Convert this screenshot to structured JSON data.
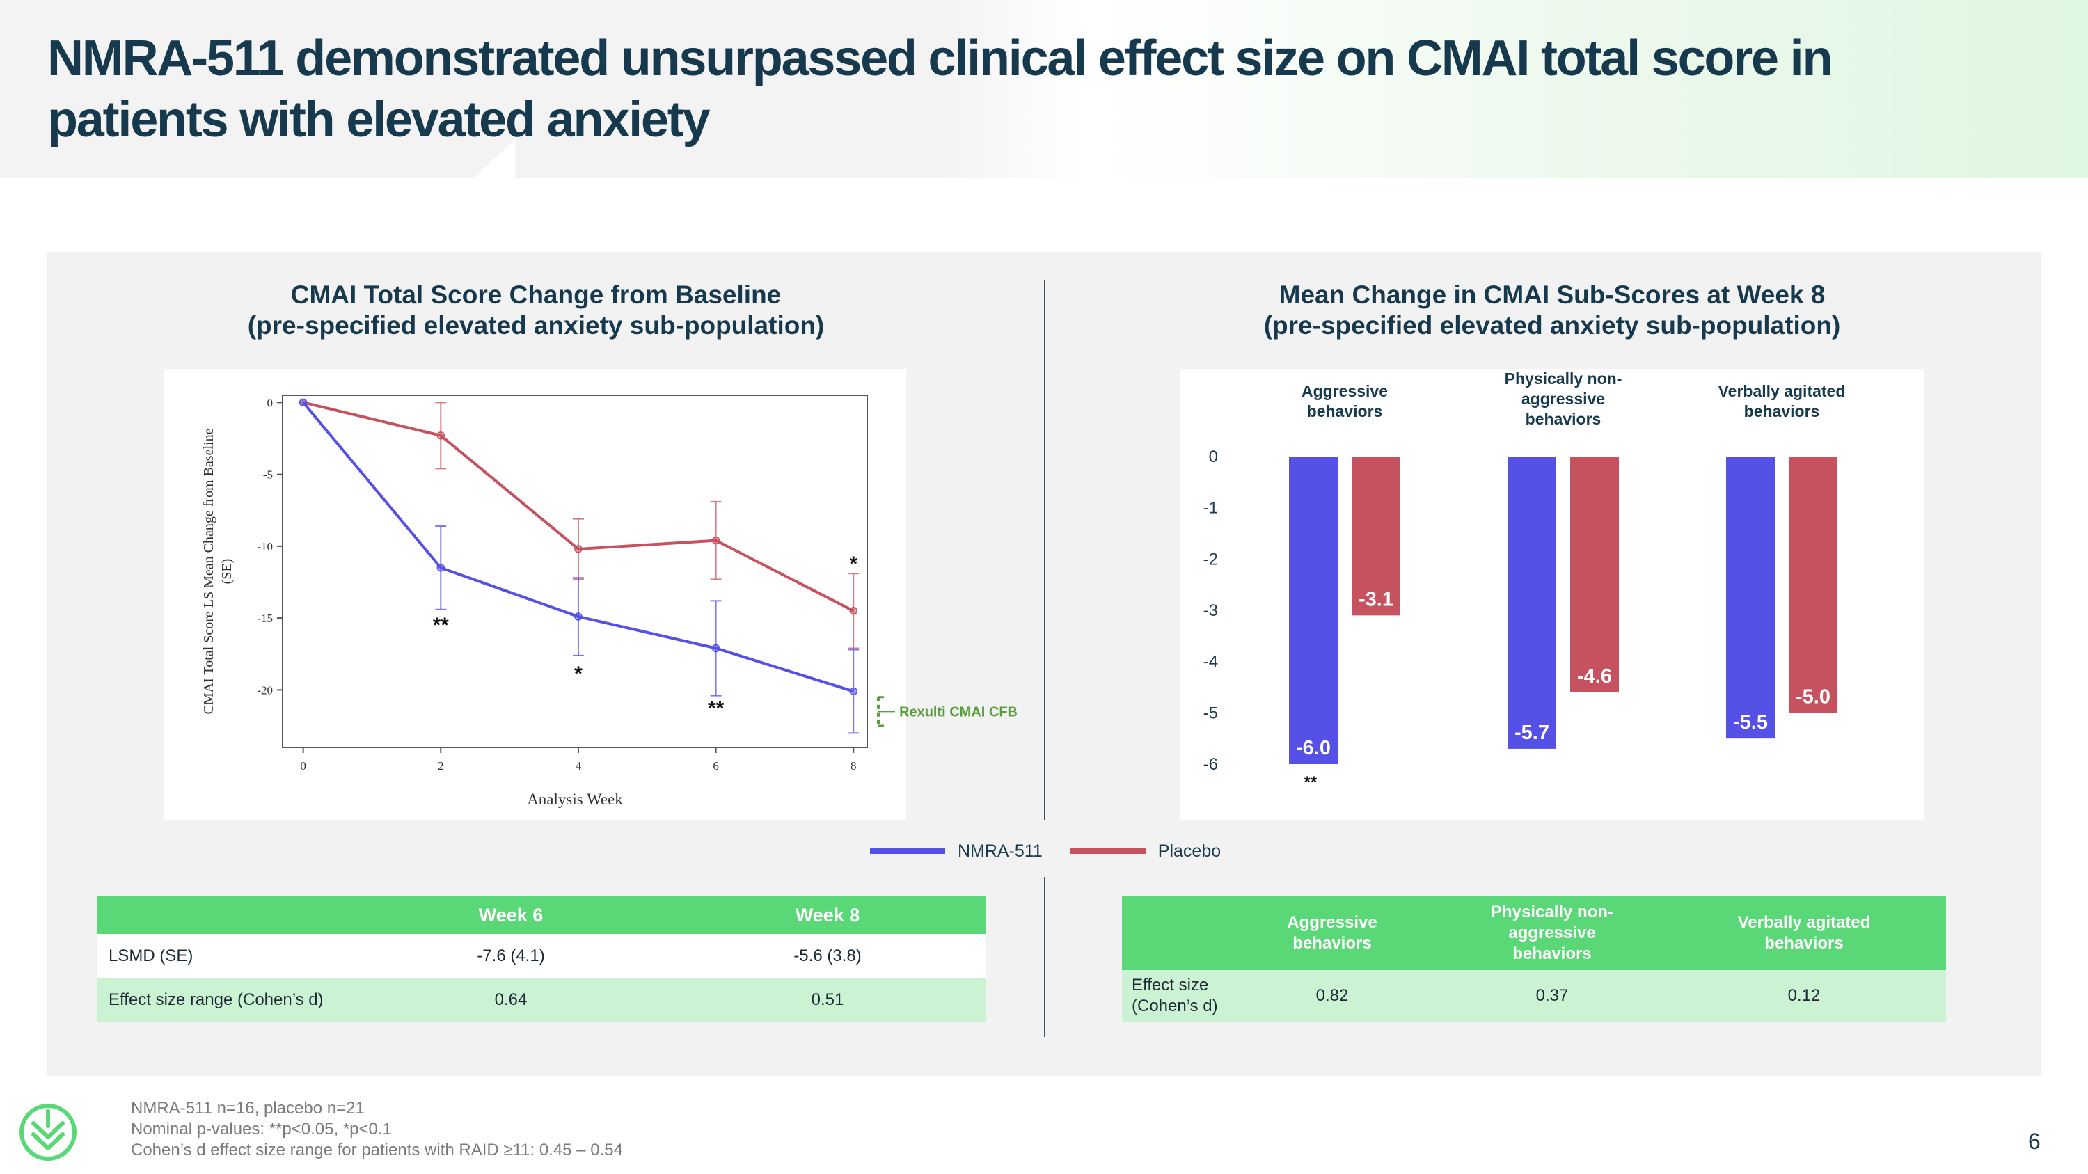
{
  "slide": {
    "title": "NMRA-511 demonstrated unsurpassed clinical effect size on CMAI total score in patients with elevated anxiety",
    "page_number": "6",
    "brand_color": "#5ad877"
  },
  "colors": {
    "nmra": "#5550e6",
    "placebo": "#c6525f",
    "reference": "#5a9e3c",
    "title": "#17394d"
  },
  "left_chart": {
    "heading_line1": "CMAI Total Score Change from Baseline",
    "heading_line2": "(pre-specified elevated anxiety sub-population)"
  },
  "right_chart": {
    "heading_line1": "Mean Change in CMAI Sub-Scores at Week 8",
    "heading_line2": "(pre-specified elevated anxiety sub-population)"
  },
  "legend": {
    "nmra": "NMRA-511",
    "placebo": "Placebo"
  },
  "chart_data": [
    {
      "type": "line",
      "title": "CMAI Total Score Change from Baseline",
      "xlabel": "Analysis Week",
      "ylabel": "CMAI Total Score LS Mean Change from Baseline (SE)",
      "x": [
        0,
        2,
        4,
        6,
        8
      ],
      "xlim": [
        -0.3,
        8.2
      ],
      "ylim": [
        -24,
        0.5
      ],
      "xticks": [
        0,
        2,
        4,
        6,
        8
      ],
      "yticks": [
        0,
        -5,
        -10,
        -15,
        -20
      ],
      "series": [
        {
          "name": "NMRA-511",
          "color": "#5550e6",
          "values": [
            0,
            -11.5,
            -14.9,
            -17.1,
            -20.1
          ],
          "se": [
            0,
            2.9,
            2.7,
            3.3,
            2.9
          ],
          "sig": [
            "",
            "**",
            "*",
            "**",
            ""
          ]
        },
        {
          "name": "Placebo",
          "color": "#c6525f",
          "values": [
            0,
            -2.3,
            -10.2,
            -9.6,
            -14.5
          ],
          "se": [
            0,
            2.3,
            2.1,
            2.7,
            2.6
          ],
          "sig": [
            "",
            "",
            "",
            "",
            "*"
          ]
        }
      ],
      "reference": {
        "label": "Rexulti CMAI CFB",
        "range": [
          -20.5,
          -22.5
        ],
        "color": "#5a9e3c"
      }
    },
    {
      "type": "bar",
      "title": "Mean Change in CMAI Sub-Scores at Week 8",
      "categories": [
        "Aggressive behaviors",
        "Physically non-aggressive behaviors",
        "Verbally agitated behaviors"
      ],
      "ylim": [
        -6,
        0
      ],
      "yticks": [
        "0",
        "-1",
        "-2",
        "-3",
        "-4",
        "-5",
        "-6"
      ],
      "series": [
        {
          "name": "NMRA-511",
          "color": "#5550e6",
          "values": [
            -6.0,
            -5.7,
            -5.5
          ],
          "labels": [
            "-6.0",
            "-5.7",
            "-5.5"
          ],
          "sig": [
            "**",
            "",
            ""
          ]
        },
        {
          "name": "Placebo",
          "color": "#c6525f",
          "values": [
            -3.1,
            -4.6,
            -5.0
          ],
          "labels": [
            "-3.1",
            "-4.6",
            "-5.0"
          ],
          "sig": [
            "",
            "",
            ""
          ]
        }
      ]
    }
  ],
  "left_table": {
    "headers": [
      "",
      "Week 6",
      "Week 8"
    ],
    "rows": [
      {
        "label": "LSMD (SE)",
        "values": [
          "-7.6 (4.1)",
          "-5.6 (3.8)"
        ]
      },
      {
        "label": "Effect size range (Cohen’s d)",
        "values": [
          "0.64",
          "0.51"
        ]
      }
    ]
  },
  "right_table": {
    "headers": [
      "",
      "Aggressive behaviors",
      "Physically non-aggressive behaviors",
      "Verbally agitated behaviors"
    ],
    "row_label": "Effect size (Cohen’s d)",
    "values": [
      "0.82",
      "0.37",
      "0.12"
    ]
  },
  "footnotes": [
    "NMRA-511 n=16, placebo n=21",
    "Nominal p-values: **p<0.05, *p<0.1",
    "Cohen’s d effect size range for patients with RAID ≥11: 0.45 – 0.54"
  ]
}
